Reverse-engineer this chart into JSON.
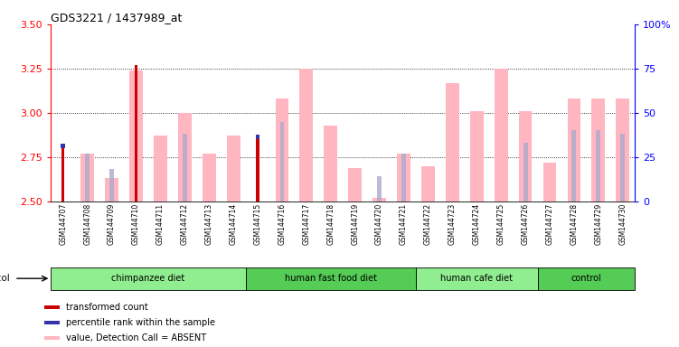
{
  "title": "GDS3221 / 1437989_at",
  "samples": [
    "GSM144707",
    "GSM144708",
    "GSM144709",
    "GSM144710",
    "GSM144711",
    "GSM144712",
    "GSM144713",
    "GSM144714",
    "GSM144715",
    "GSM144716",
    "GSM144717",
    "GSM144718",
    "GSM144719",
    "GSM144720",
    "GSM144721",
    "GSM144722",
    "GSM144723",
    "GSM144724",
    "GSM144725",
    "GSM144726",
    "GSM144727",
    "GSM144728",
    "GSM144729",
    "GSM144730"
  ],
  "red_bars": [
    2.8,
    null,
    null,
    3.27,
    null,
    null,
    null,
    null,
    2.85,
    null,
    null,
    null,
    null,
    null,
    null,
    null,
    null,
    null,
    null,
    null,
    null,
    null,
    null,
    null
  ],
  "blue_bars": [
    2.8,
    null,
    null,
    null,
    null,
    null,
    null,
    null,
    2.85,
    null,
    null,
    null,
    null,
    null,
    null,
    null,
    null,
    null,
    null,
    null,
    null,
    null,
    null,
    null
  ],
  "pink_bars": [
    null,
    2.77,
    2.63,
    3.24,
    2.87,
    3.0,
    2.77,
    2.87,
    null,
    3.08,
    3.25,
    2.93,
    2.69,
    2.52,
    2.77,
    2.7,
    3.17,
    3.01,
    3.25,
    3.01,
    2.72,
    3.08,
    3.08,
    3.08
  ],
  "lavender_bars": [
    null,
    2.77,
    2.68,
    null,
    null,
    2.88,
    null,
    null,
    null,
    2.95,
    null,
    null,
    null,
    2.64,
    2.77,
    null,
    null,
    null,
    null,
    2.83,
    null,
    2.9,
    2.9,
    2.88
  ],
  "groups": [
    {
      "label": "chimpanzee diet",
      "start": 0,
      "end": 8,
      "color": "#90EE90"
    },
    {
      "label": "human fast food diet",
      "start": 8,
      "end": 15,
      "color": "#55CC55"
    },
    {
      "label": "human cafe diet",
      "start": 15,
      "end": 20,
      "color": "#90EE90"
    },
    {
      "label": "control",
      "start": 20,
      "end": 24,
      "color": "#55CC55"
    }
  ],
  "ylim_left": [
    2.5,
    3.5
  ],
  "ylim_right": [
    0,
    100
  ],
  "yticks_left": [
    2.5,
    2.75,
    3.0,
    3.25,
    3.5
  ],
  "yticks_right": [
    0,
    25,
    50,
    75,
    100
  ],
  "gridlines": [
    2.75,
    3.0,
    3.25
  ],
  "baseline": 2.5
}
